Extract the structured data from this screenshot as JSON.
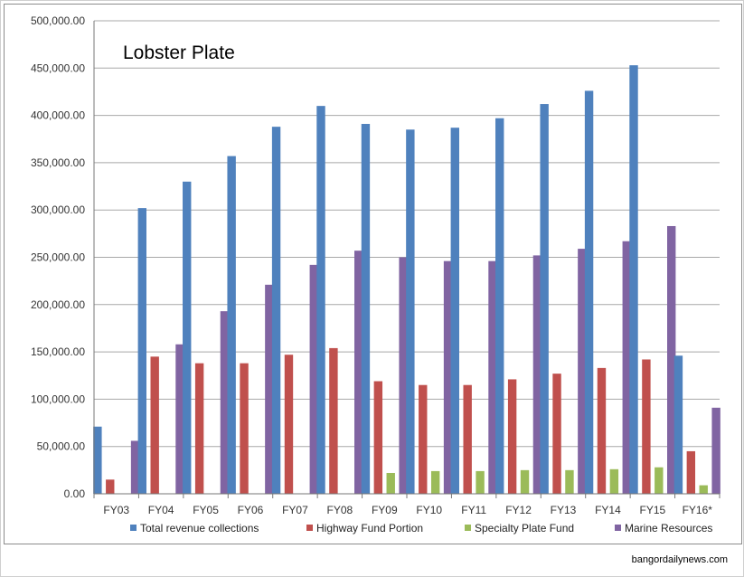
{
  "chart_data": {
    "type": "bar",
    "title": "Lobster Plate",
    "categories": [
      "FY03",
      "FY04",
      "FY05",
      "FY06",
      "FY07",
      "FY08",
      "FY09",
      "FY10",
      "FY11",
      "FY12",
      "FY13",
      "FY14",
      "FY15",
      "FY16*"
    ],
    "ylim": [
      0,
      500000
    ],
    "yticks": [
      "0.00",
      "50,000.00",
      "100,000.00",
      "150,000.00",
      "200,000.00",
      "250,000.00",
      "300,000.00",
      "350,000.00",
      "400,000.00",
      "450,000.00",
      "500,000.00"
    ],
    "ytick_values": [
      0,
      50000,
      100000,
      150000,
      200000,
      250000,
      300000,
      350000,
      400000,
      450000,
      500000
    ],
    "grid": true,
    "legend_position": "bottom",
    "series": [
      {
        "name": "Total revenue collections",
        "color": "#4F81BD",
        "values": [
          71000,
          302000,
          330000,
          357000,
          388000,
          410000,
          391000,
          385000,
          387000,
          397000,
          412000,
          426000,
          453000,
          146000
        ]
      },
      {
        "name": "Highway Fund Portion",
        "color": "#C0504D",
        "values": [
          15000,
          145000,
          138000,
          138000,
          147000,
          154000,
          119000,
          115000,
          115000,
          121000,
          127000,
          133000,
          142000,
          45000
        ]
      },
      {
        "name": "Specialty Plate Fund",
        "color": "#9BBB59",
        "values": [
          0,
          0,
          0,
          0,
          0,
          0,
          22000,
          24000,
          24000,
          25000,
          25000,
          26000,
          28000,
          9000
        ]
      },
      {
        "name": "Marine Resources",
        "color": "#8064A2",
        "values": [
          56000,
          158000,
          193000,
          221000,
          242000,
          257000,
          250000,
          246000,
          246000,
          252000,
          259000,
          267000,
          283000,
          91000
        ]
      }
    ]
  },
  "credit": "bangordailynews.com"
}
